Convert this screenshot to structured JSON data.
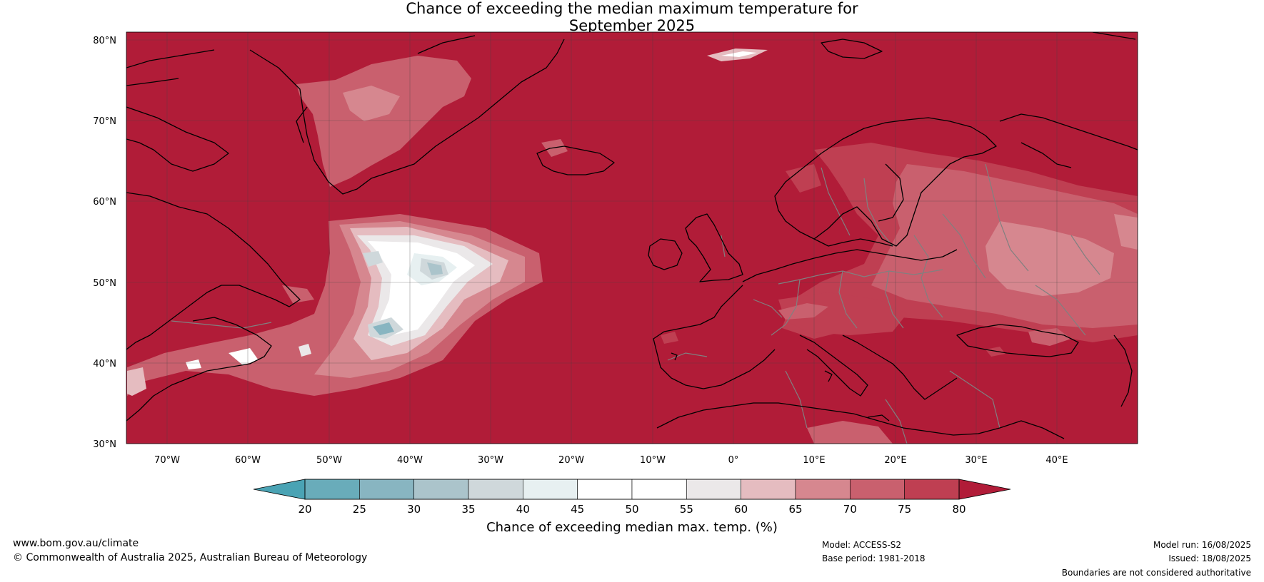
{
  "title": {
    "line1": "Chance of exceeding the median maximum temperature for",
    "line2": "September 2025"
  },
  "map": {
    "lat_range": [
      30,
      81
    ],
    "lon_range": [
      -75,
      50
    ],
    "lat_ticks": [
      "80°N",
      "70°N",
      "60°N",
      "50°N",
      "40°N",
      "30°N"
    ],
    "lat_tick_values": [
      80,
      70,
      60,
      50,
      40,
      30
    ],
    "lon_ticks": [
      "70°W",
      "60°W",
      "50°W",
      "40°W",
      "30°W",
      "20°W",
      "10°W",
      "0°",
      "10°E",
      "20°E",
      "30°E",
      "40°E"
    ],
    "lon_tick_values": [
      -70,
      -60,
      -50,
      -40,
      -30,
      -20,
      -10,
      0,
      10,
      20,
      30,
      40
    ],
    "dominant_category": "80+",
    "colors": {
      "above_80": "#b11c38",
      "c75_80": "#bf3f52",
      "c70_75": "#c9606e",
      "c65_70": "#d6878f",
      "c60_65": "#e5bcc0",
      "c55_60": "#ebe8e9",
      "c50_55": "#ffffff",
      "c45_50": "#ffffff",
      "c40_45": "#e7f0f1",
      "c35_40": "#cfd8db",
      "c30_35": "#abc4cb",
      "c25_30": "#88b5c1",
      "c20_25": "#69acba",
      "below_20": "#4aa3b4",
      "coastline": "#000000",
      "borders": "#808080",
      "gridlines": "#444444"
    }
  },
  "colorbar": {
    "label": "Chance of exceeding median max. temp. (%)",
    "ticks": [
      "20",
      "25",
      "30",
      "35",
      "40",
      "45",
      "50",
      "55",
      "60",
      "65",
      "70",
      "75",
      "80"
    ],
    "bin_colors": [
      "#69acba",
      "#88b5c1",
      "#abc4cb",
      "#cfd8db",
      "#e7f0f1",
      "#ffffff",
      "#ffffff",
      "#ebe8e9",
      "#e5bcc0",
      "#d6878f",
      "#c9606e",
      "#bf3f52"
    ],
    "under_color": "#4aa3b4",
    "over_color": "#b11c38"
  },
  "footer": {
    "website": "www.bom.gov.au/climate",
    "copyright": "© Commonwealth of Australia 2025, Australian Bureau of Meteorology",
    "model": "Model: ACCESS-S2",
    "base_period": "Base period: 1981-2018",
    "model_run": "Model run: 16/08/2025",
    "issued": "Issued: 18/08/2025",
    "disclaimer": "Boundaries are not considered authoritative"
  }
}
